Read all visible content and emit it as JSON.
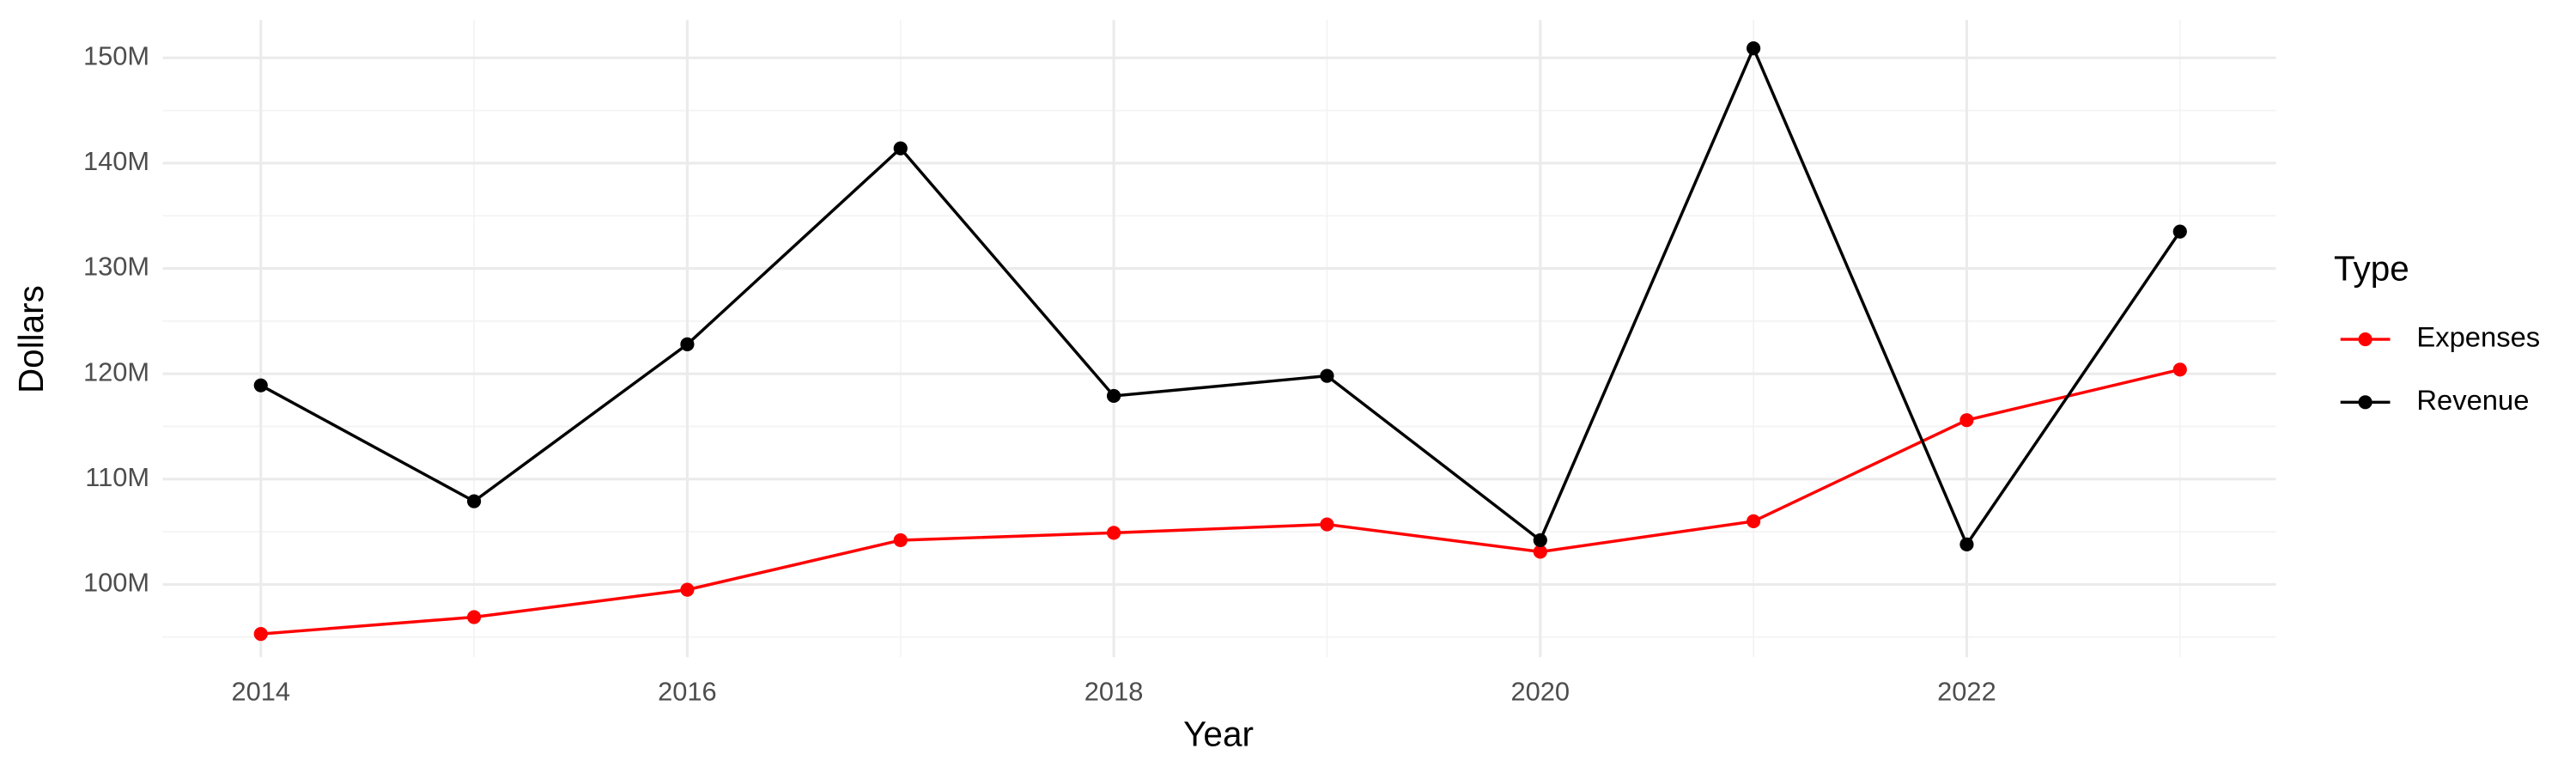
{
  "chart_data": {
    "type": "line",
    "x_label": "Year",
    "y_label": "Dollars",
    "legend_title": "Type",
    "legend_position": "right",
    "grid": true,
    "x": [
      2014,
      2015,
      2016,
      2017,
      2018,
      2019,
      2020,
      2021,
      2022,
      2023
    ],
    "series": [
      {
        "name": "Expenses",
        "color": "#ff0000",
        "values": [
          95300000,
          96900000,
          99500000,
          104200000,
          104900000,
          105700000,
          103100000,
          106000000,
          115600000,
          120400000
        ]
      },
      {
        "name": "Revenue",
        "color": "#000000",
        "values": [
          118900000,
          107900000,
          122800000,
          141400000,
          117900000,
          119800000,
          104200000,
          150900000,
          103800000,
          133500000
        ]
      }
    ],
    "xlim": [
      2013.54,
      2023.45
    ],
    "xticks": [
      2014,
      2016,
      2018,
      2020,
      2022
    ],
    "ylim": [
      93100000,
      153600000
    ],
    "yticks": [
      {
        "value": 100000000,
        "label": "100M"
      },
      {
        "value": 110000000,
        "label": "110M"
      },
      {
        "value": 120000000,
        "label": "120M"
      },
      {
        "value": 130000000,
        "label": "130M"
      },
      {
        "value": 140000000,
        "label": "140M"
      },
      {
        "value": 150000000,
        "label": "150M"
      }
    ]
  }
}
